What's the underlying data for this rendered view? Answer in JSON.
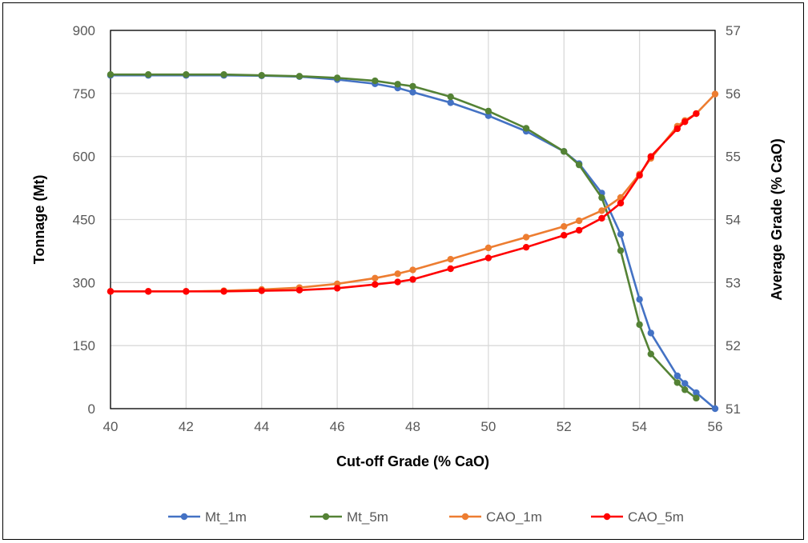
{
  "chart_data": {
    "type": "line",
    "xlabel": "Cut-off Grade (% CaO)",
    "ylabel": "Tonnage (Mt)",
    "y2label": "Average Grade (% CaO)",
    "xlim": [
      40,
      56
    ],
    "ylim": [
      0,
      900
    ],
    "y2lim": [
      51,
      57
    ],
    "xticks": [
      "40",
      "42",
      "44",
      "46",
      "48",
      "50",
      "52",
      "54",
      "56"
    ],
    "yticks": [
      "0",
      "150",
      "300",
      "450",
      "600",
      "750",
      "900"
    ],
    "y2ticks": [
      "51",
      "52",
      "53",
      "54",
      "55",
      "56",
      "57"
    ],
    "grid": true,
    "legend_position": "bottom",
    "series": [
      {
        "name": "Mt_1m",
        "axis": "left",
        "color": "#4472C4",
        "points": [
          [
            40,
            793
          ],
          [
            41,
            793
          ],
          [
            42,
            793
          ],
          [
            43,
            793
          ],
          [
            44,
            792
          ],
          [
            45,
            790
          ],
          [
            46,
            783
          ],
          [
            47,
            773
          ],
          [
            47.6,
            763
          ],
          [
            48,
            753
          ],
          [
            49,
            728
          ],
          [
            50,
            697
          ],
          [
            51,
            660
          ],
          [
            52,
            612
          ],
          [
            52.4,
            583
          ],
          [
            53,
            513
          ],
          [
            53.5,
            415
          ],
          [
            54,
            260
          ],
          [
            54.3,
            180
          ],
          [
            55,
            78
          ],
          [
            55.2,
            60
          ],
          [
            55.5,
            38
          ],
          [
            56,
            0
          ]
        ]
      },
      {
        "name": "Mt_5m",
        "axis": "left",
        "color": "#548235",
        "points": [
          [
            40,
            795
          ],
          [
            41,
            795
          ],
          [
            42,
            795
          ],
          [
            43,
            795
          ],
          [
            44,
            793
          ],
          [
            45,
            791
          ],
          [
            46,
            787
          ],
          [
            47,
            780
          ],
          [
            47.6,
            772
          ],
          [
            48,
            767
          ],
          [
            49,
            742
          ],
          [
            50,
            708
          ],
          [
            51,
            667
          ],
          [
            52,
            612
          ],
          [
            52.4,
            580
          ],
          [
            53,
            502
          ],
          [
            53.5,
            376
          ],
          [
            54,
            200
          ],
          [
            54.3,
            130
          ],
          [
            55,
            62
          ],
          [
            55.2,
            45
          ],
          [
            55.5,
            25
          ]
        ]
      },
      {
        "name": "CAO_1m",
        "axis": "right",
        "color": "#ED7D31",
        "points": [
          [
            40,
            52.86
          ],
          [
            41,
            52.86
          ],
          [
            42,
            52.86
          ],
          [
            43,
            52.87
          ],
          [
            44,
            52.89
          ],
          [
            45,
            52.92
          ],
          [
            46,
            52.98
          ],
          [
            47,
            53.07
          ],
          [
            47.6,
            53.14
          ],
          [
            48,
            53.2
          ],
          [
            49,
            53.37
          ],
          [
            50,
            53.55
          ],
          [
            51,
            53.72
          ],
          [
            52,
            53.89
          ],
          [
            52.4,
            53.98
          ],
          [
            53,
            54.14
          ],
          [
            53.5,
            54.35
          ],
          [
            54,
            54.72
          ],
          [
            54.3,
            54.97
          ],
          [
            55,
            55.48
          ],
          [
            55.2,
            55.57
          ],
          [
            55.5,
            55.68
          ],
          [
            56,
            55.99
          ]
        ]
      },
      {
        "name": "CAO_5m",
        "axis": "right",
        "color": "#FF0000",
        "points": [
          [
            40,
            52.86
          ],
          [
            41,
            52.86
          ],
          [
            42,
            52.86
          ],
          [
            43,
            52.86
          ],
          [
            44,
            52.87
          ],
          [
            45,
            52.88
          ],
          [
            46,
            52.91
          ],
          [
            47,
            52.97
          ],
          [
            47.6,
            53.01
          ],
          [
            48,
            53.05
          ],
          [
            49,
            53.22
          ],
          [
            50,
            53.39
          ],
          [
            51,
            53.56
          ],
          [
            52,
            53.75
          ],
          [
            52.4,
            53.83
          ],
          [
            53,
            54.02
          ],
          [
            53.5,
            54.26
          ],
          [
            54,
            54.7
          ],
          [
            54.3,
            55.0
          ],
          [
            55,
            55.44
          ],
          [
            55.2,
            55.55
          ],
          [
            55.5,
            55.68
          ]
        ]
      }
    ]
  }
}
